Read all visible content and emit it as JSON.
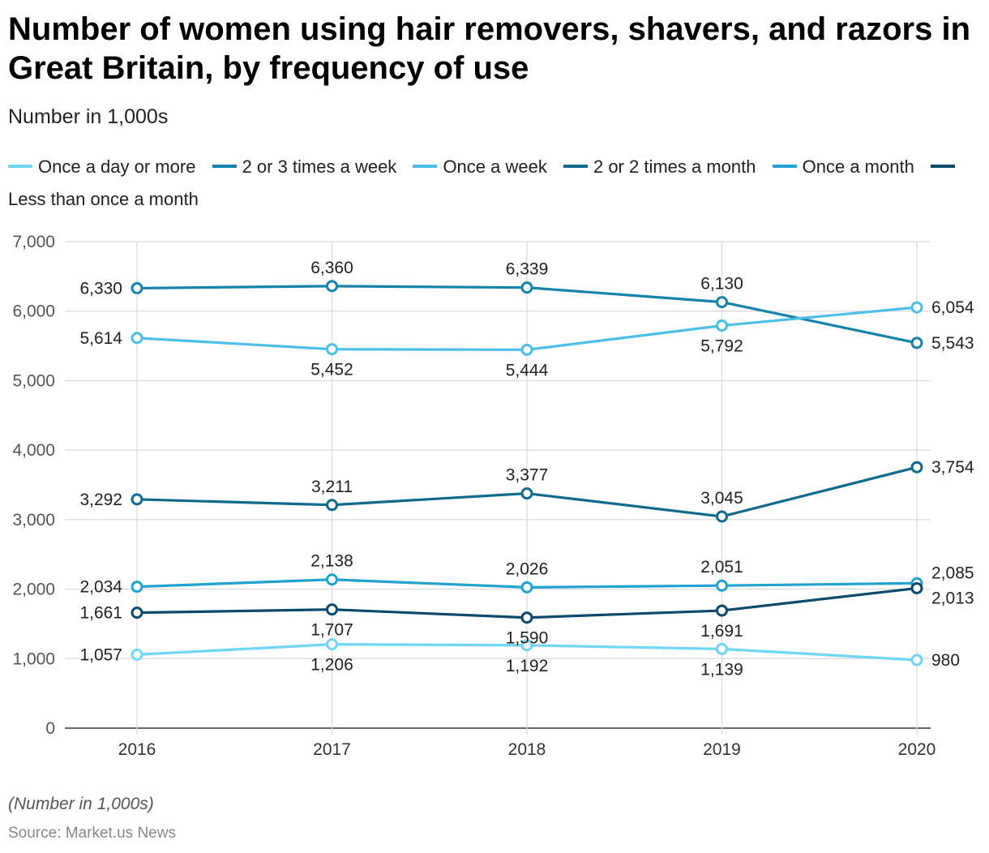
{
  "chart_data": {
    "type": "line",
    "title": "Number of women using hair removers, shavers, and razors in Great Britain, by frequency of use",
    "subtitle": "Number in 1,000s",
    "x": [
      "2016",
      "2017",
      "2018",
      "2019",
      "2020"
    ],
    "ylim": [
      0,
      7000
    ],
    "yticks": [
      0,
      1000,
      2000,
      3000,
      4000,
      5000,
      6000,
      7000
    ],
    "ytick_labels": [
      "0",
      "1,000",
      "2,000",
      "3,000",
      "4,000",
      "5,000",
      "6,000",
      "7,000"
    ],
    "grid": true,
    "legend_position": "top",
    "series": [
      {
        "name": "Once a day or more",
        "color": "#6fd6f5",
        "values": [
          1057,
          1206,
          1192,
          1139,
          980
        ],
        "labels": [
          "1,057",
          "1,206",
          "1,192",
          "1,139",
          "980"
        ],
        "label_pos": [
          "left",
          "below",
          "below",
          "below",
          "right"
        ]
      },
      {
        "name": "2 or 3 times a week",
        "color": "#1583ab",
        "values": [
          6330,
          6360,
          6339,
          6130,
          5543
        ],
        "labels": [
          "6,330",
          "6,360",
          "6,339",
          "6,130",
          "5,543"
        ],
        "label_pos": [
          "left",
          "above",
          "above",
          "above",
          "right"
        ]
      },
      {
        "name": "Once a week",
        "color": "#4cbfe8",
        "values": [
          5614,
          5452,
          5444,
          5792,
          6054
        ],
        "labels": [
          "5,614",
          "5,452",
          "5,444",
          "5,792",
          "6,054"
        ],
        "label_pos": [
          "left",
          "below",
          "below",
          "below",
          "right"
        ]
      },
      {
        "name": "2 or 2 times a month",
        "color": "#0f6a8e",
        "values": [
          3292,
          3211,
          3377,
          3045,
          3754
        ],
        "labels": [
          "3,292",
          "3,211",
          "3,377",
          "3,045",
          "3,754"
        ],
        "label_pos": [
          "left",
          "above",
          "above",
          "above",
          "right"
        ]
      },
      {
        "name": "Once a month",
        "color": "#22a2d0",
        "values": [
          2034,
          2138,
          2026,
          2051,
          2085
        ],
        "labels": [
          "2,034",
          "2,138",
          "2,026",
          "2,051",
          "2,085"
        ],
        "label_pos": [
          "left",
          "above",
          "above",
          "above",
          "right-up"
        ]
      },
      {
        "name": "Less than once a month",
        "color": "#0b4a6c",
        "values": [
          1661,
          1707,
          1590,
          1691,
          2013
        ],
        "labels": [
          "1,661",
          "1,707",
          "1,590",
          "1,691",
          "2,013"
        ],
        "label_pos": [
          "left",
          "below",
          "below",
          "below",
          "right-down"
        ]
      }
    ]
  },
  "footer": {
    "note": "(Number in 1,000s)",
    "source": "Source: Market.us News"
  }
}
